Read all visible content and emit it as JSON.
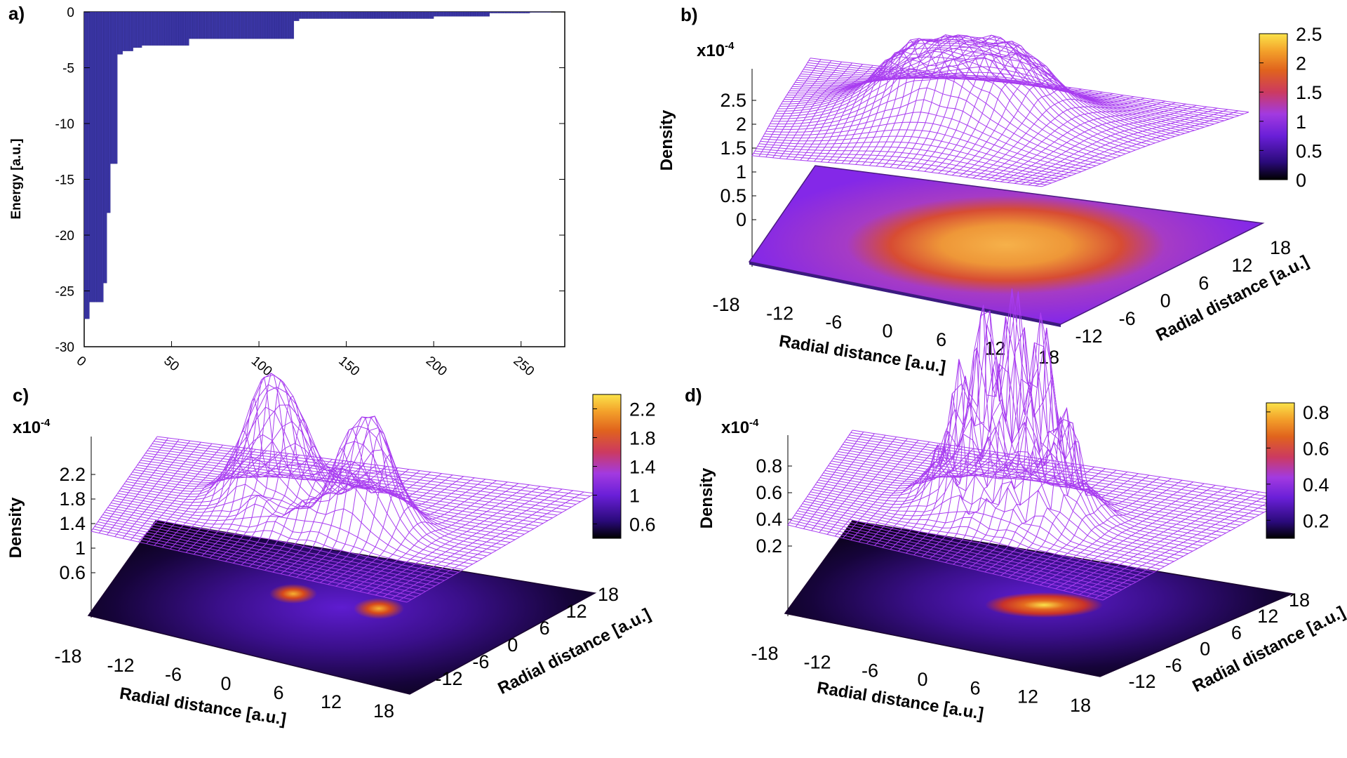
{
  "chart_data": [
    {
      "panel": "a)",
      "type": "bar",
      "ylabel": "Energy [a.u.]",
      "xlabel": "",
      "xlim": [
        0,
        275
      ],
      "ylim": [
        -30,
        0
      ],
      "xticks": [
        0,
        50,
        100,
        150,
        200,
        250
      ],
      "yticks": [
        0,
        -5,
        -10,
        -15,
        -20,
        -25,
        -30
      ],
      "bar_color": "#3b36a6",
      "steps": [
        {
          "from": 0,
          "to": 3,
          "value": -27.5
        },
        {
          "from": 3,
          "to": 11,
          "value": -26.0
        },
        {
          "from": 11,
          "to": 13,
          "value": -24.3
        },
        {
          "from": 13,
          "to": 15,
          "value": -18.0
        },
        {
          "from": 15,
          "to": 19,
          "value": -13.6
        },
        {
          "from": 19,
          "to": 22,
          "value": -3.8
        },
        {
          "from": 22,
          "to": 28,
          "value": -3.5
        },
        {
          "from": 28,
          "to": 33,
          "value": -3.2
        },
        {
          "from": 33,
          "to": 60,
          "value": -3.0
        },
        {
          "from": 60,
          "to": 120,
          "value": -2.4
        },
        {
          "from": 120,
          "to": 123,
          "value": -0.8
        },
        {
          "from": 123,
          "to": 200,
          "value": -0.6
        },
        {
          "from": 200,
          "to": 232,
          "value": -0.4
        },
        {
          "from": 232,
          "to": 255,
          "value": -0.1
        },
        {
          "from": 255,
          "to": 267,
          "value": -0.03
        }
      ]
    },
    {
      "panel": "b)",
      "type": "surface",
      "zlabel": "Density",
      "scale": "x10",
      "scale_exp": "-4",
      "zticks": [
        "2.5",
        "2",
        "1.5",
        "1",
        "0.5",
        "0"
      ],
      "xlabel": "Radial distance [a.u.]",
      "ylabel": "Radial distance [a.u.]",
      "xticks": [
        "-18",
        "-12",
        "-6",
        "0",
        "6",
        "12",
        "18"
      ],
      "yticks": [
        "-12",
        "-6",
        "0",
        "6",
        "12",
        "18"
      ],
      "colorbar_ticks": [
        "2.5",
        "2",
        "1.5",
        "1",
        "0.5",
        "0"
      ],
      "colorbar_range": [
        0,
        2.5
      ],
      "peaks": [
        {
          "x": 0,
          "y": 0,
          "h": 1.0
        }
      ],
      "lobes": [
        {
          "x": 0,
          "y": 0,
          "h": 1.0,
          "w": 7
        }
      ]
    },
    {
      "panel": "c)",
      "type": "surface",
      "zlabel": "Density",
      "scale": "x10",
      "scale_exp": "-4",
      "zticks": [
        "2.2",
        "1.8",
        "1.4",
        "1",
        "0.6"
      ],
      "xlabel": "Radial distance [a.u.]",
      "ylabel": "Radial distance [a.u.]",
      "xticks": [
        "-18",
        "-12",
        "-6",
        "0",
        "6",
        "12",
        "18"
      ],
      "yticks": [
        "-12",
        "-6",
        "0",
        "6",
        "12",
        "18"
      ],
      "colorbar_ticks": [
        "2.2",
        "1.8",
        "1.4",
        "1",
        "0.6"
      ],
      "colorbar_range": [
        0.4,
        2.4
      ],
      "peaks": [
        {
          "x": -4,
          "y": 2,
          "h": 1.0
        },
        {
          "x": 6,
          "y": -2,
          "h": 0.85
        }
      ],
      "lobes": [
        {
          "x": -4,
          "y": 2,
          "h": 1.0,
          "w": 2.5
        },
        {
          "x": 6,
          "y": -2,
          "h": 0.85,
          "w": 2.5
        }
      ]
    },
    {
      "panel": "d)",
      "type": "surface",
      "zlabel": "Density",
      "scale": "x10",
      "scale_exp": "-4",
      "zticks": [
        "0.8",
        "0.6",
        "0.4",
        "0.2"
      ],
      "xlabel": "Radial distance [a.u.]",
      "ylabel": "Radial distance [a.u.]",
      "xticks": [
        "-18",
        "-12",
        "-6",
        "0",
        "6",
        "12",
        "18"
      ],
      "yticks": [
        "-12",
        "-6",
        "0",
        "6",
        "12",
        "18"
      ],
      "colorbar_ticks": [
        "0.8",
        "0.6",
        "0.4",
        "0.2"
      ],
      "colorbar_range": [
        0.1,
        0.85
      ],
      "peaks": [
        {
          "x": 0,
          "y": 0,
          "h": 1.0
        }
      ],
      "lobes": [
        {
          "x": -3,
          "y": 0,
          "h": 0.9,
          "w": 2.2
        },
        {
          "x": 3,
          "y": 0,
          "h": 0.95,
          "w": 2.2
        },
        {
          "x": 0,
          "y": 1,
          "h": 0.7,
          "w": 2.5
        }
      ]
    }
  ]
}
